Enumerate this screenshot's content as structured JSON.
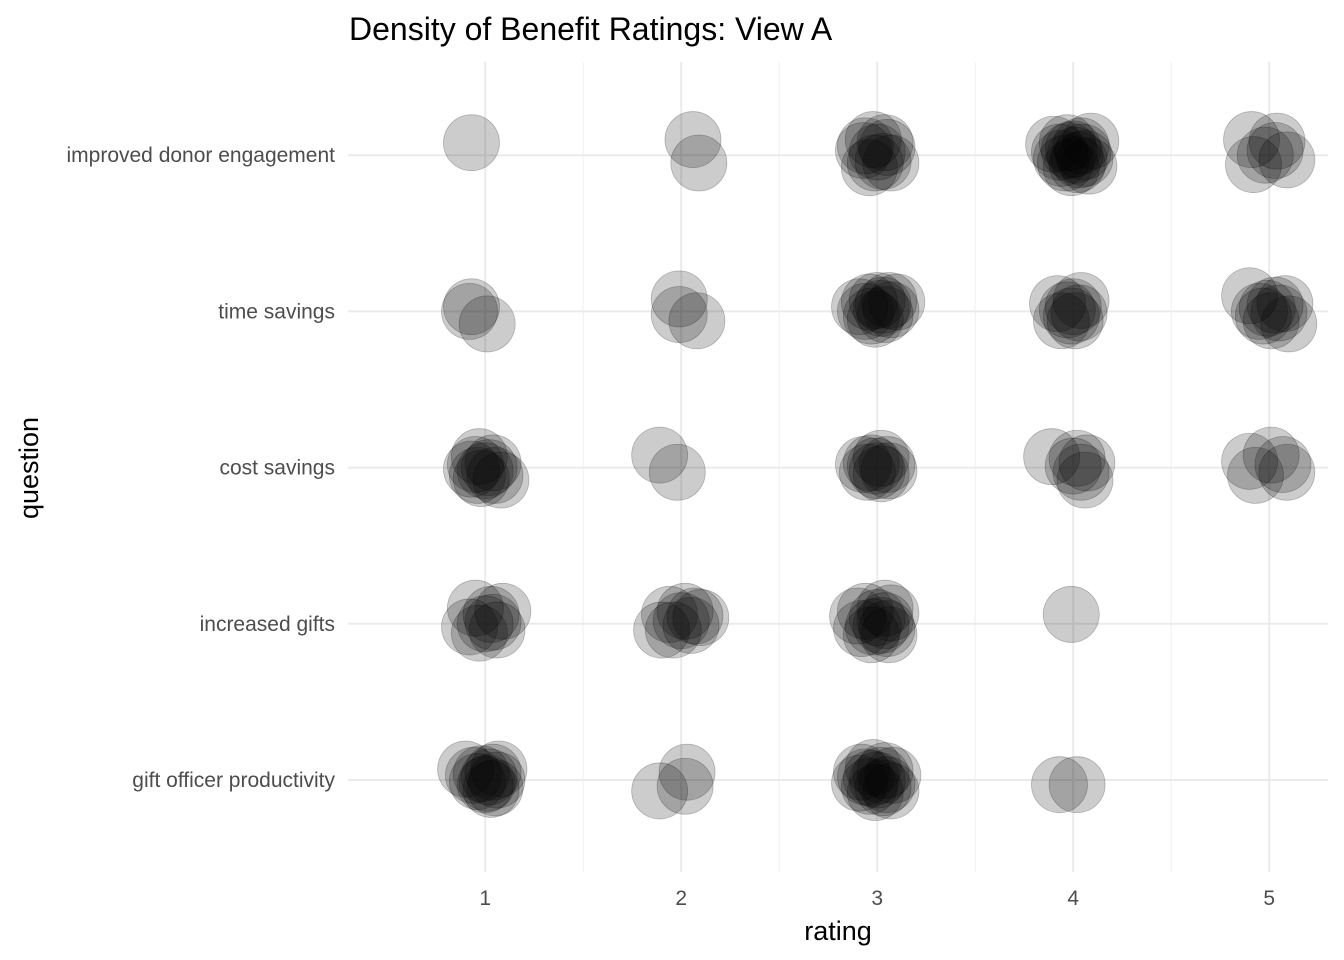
{
  "chart_data": {
    "type": "scatter",
    "title": "Density of Benefit Ratings: View A",
    "xlabel": "rating",
    "ylabel": "question",
    "x_ticks": [
      1,
      2,
      3,
      4,
      5
    ],
    "xlim": [
      0.3,
      5.3
    ],
    "categories": [
      "gift officer productivity",
      "increased gifts",
      "cost savings",
      "time savings",
      "improved donor engagement"
    ],
    "grid": true,
    "legend": "none",
    "point_color": "#000000",
    "points": [
      {
        "question": "improved donor engagement",
        "rating": 1,
        "jitter": [
          [
            -0.07,
            0.08
          ]
        ]
      },
      {
        "question": "improved donor engagement",
        "rating": 2,
        "jitter": [
          [
            0.06,
            0.1
          ],
          [
            0.09,
            -0.05
          ]
        ]
      },
      {
        "question": "improved donor engagement",
        "rating": 3,
        "jitter": [
          [
            -0.06,
            0.06
          ],
          [
            0.05,
            0.05
          ],
          [
            -0.02,
            0.1
          ],
          [
            0.03,
            -0.04
          ],
          [
            -0.04,
            -0.08
          ],
          [
            0.07,
            -0.05
          ],
          [
            0.0,
            0.02
          ],
          [
            -0.07,
            0.03
          ],
          [
            0.04,
            0.08
          ],
          [
            -0.01,
            -0.05
          ]
        ]
      },
      {
        "question": "improved donor engagement",
        "rating": 4,
        "jitter": [
          [
            -0.1,
            0.07
          ],
          [
            -0.03,
            0.08
          ],
          [
            0.09,
            0.09
          ],
          [
            0.04,
            0.06
          ],
          [
            -0.07,
            0.02
          ],
          [
            0.01,
            0.0
          ],
          [
            0.06,
            -0.02
          ],
          [
            -0.04,
            -0.05
          ],
          [
            0.02,
            -0.06
          ],
          [
            0.08,
            -0.07
          ],
          [
            -0.01,
            -0.08
          ],
          [
            0.0,
            0.04
          ],
          [
            -0.06,
            -0.02
          ],
          [
            0.05,
            0.02
          ],
          [
            -0.02,
            0.03
          ],
          [
            0.03,
            -0.03
          ]
        ]
      },
      {
        "question": "improved donor engagement",
        "rating": 5,
        "jitter": [
          [
            -0.09,
            0.1
          ],
          [
            0.04,
            0.09
          ],
          [
            -0.08,
            -0.06
          ],
          [
            0.09,
            -0.03
          ],
          [
            -0.02,
            0.0
          ],
          [
            0.03,
            0.03
          ]
        ]
      },
      {
        "question": "time savings",
        "rating": 1,
        "jitter": [
          [
            -0.08,
            0.0
          ],
          [
            -0.07,
            0.03
          ],
          [
            0.01,
            -0.08
          ]
        ]
      },
      {
        "question": "time savings",
        "rating": 2,
        "jitter": [
          [
            -0.01,
            0.08
          ],
          [
            -0.01,
            -0.02
          ],
          [
            0.08,
            -0.06
          ]
        ]
      },
      {
        "question": "time savings",
        "rating": 3,
        "jitter": [
          [
            -0.09,
            0.03
          ],
          [
            -0.04,
            0.06
          ],
          [
            0.0,
            0.07
          ],
          [
            0.06,
            0.07
          ],
          [
            0.1,
            0.06
          ],
          [
            -0.03,
            -0.03
          ],
          [
            0.04,
            -0.02
          ],
          [
            -0.06,
            0.0
          ],
          [
            0.02,
            0.02
          ],
          [
            0.07,
            0.01
          ],
          [
            -0.01,
            -0.05
          ],
          [
            0.03,
            0.04
          ]
        ]
      },
      {
        "question": "time savings",
        "rating": 4,
        "jitter": [
          [
            -0.08,
            0.05
          ],
          [
            0.04,
            0.07
          ],
          [
            -0.06,
            -0.06
          ],
          [
            0.01,
            -0.06
          ],
          [
            -0.03,
            0.01
          ],
          [
            0.03,
            -0.01
          ],
          [
            0.0,
            0.03
          ],
          [
            -0.01,
            -0.03
          ]
        ]
      },
      {
        "question": "time savings",
        "rating": 5,
        "jitter": [
          [
            -0.1,
            0.1
          ],
          [
            0.08,
            0.05
          ],
          [
            -0.05,
            0.0
          ],
          [
            0.05,
            -0.01
          ],
          [
            0.1,
            -0.08
          ],
          [
            -0.01,
            0.02
          ],
          [
            0.03,
            0.04
          ],
          [
            0.01,
            -0.06
          ],
          [
            -0.03,
            -0.03
          ]
        ]
      },
      {
        "question": "cost savings",
        "rating": 1,
        "jitter": [
          [
            -0.03,
            0.07
          ],
          [
            0.04,
            0.03
          ],
          [
            -0.07,
            -0.01
          ],
          [
            -0.04,
            -0.05
          ],
          [
            0.0,
            -0.02
          ],
          [
            0.08,
            -0.08
          ],
          [
            -0.05,
            0.02
          ],
          [
            0.02,
            0.0
          ],
          [
            0.05,
            -0.05
          ],
          [
            -0.02,
            -0.07
          ]
        ]
      },
      {
        "question": "cost savings",
        "rating": 2,
        "jitter": [
          [
            -0.11,
            0.08
          ],
          [
            -0.02,
            -0.03
          ]
        ]
      },
      {
        "question": "cost savings",
        "rating": 3,
        "jitter": [
          [
            -0.07,
            0.02
          ],
          [
            -0.03,
            0.03
          ],
          [
            0.02,
            0.06
          ],
          [
            0.05,
            0.02
          ],
          [
            -0.05,
            -0.03
          ],
          [
            0.0,
            -0.02
          ],
          [
            0.06,
            -0.02
          ],
          [
            -0.01,
            0.01
          ],
          [
            0.02,
            -0.04
          ]
        ]
      },
      {
        "question": "cost savings",
        "rating": 4,
        "jitter": [
          [
            -0.11,
            0.07
          ],
          [
            0.02,
            0.06
          ],
          [
            0.07,
            0.03
          ],
          [
            0.04,
            -0.03
          ],
          [
            0.06,
            -0.08
          ],
          [
            0.0,
            0.01
          ]
        ]
      },
      {
        "question": "cost savings",
        "rating": 5,
        "jitter": [
          [
            -0.1,
            0.04
          ],
          [
            0.01,
            0.08
          ],
          [
            -0.07,
            -0.05
          ],
          [
            0.09,
            -0.03
          ],
          [
            0.07,
            0.02
          ]
        ]
      },
      {
        "question": "increased gifts",
        "rating": 1,
        "jitter": [
          [
            -0.05,
            0.1
          ],
          [
            0.09,
            0.08
          ],
          [
            -0.08,
            -0.02
          ],
          [
            -0.03,
            -0.06
          ],
          [
            0.04,
            0.01
          ],
          [
            0.06,
            -0.04
          ],
          [
            0.0,
            0.0
          ],
          [
            0.03,
            0.06
          ]
        ]
      },
      {
        "question": "increased gifts",
        "rating": 2,
        "jitter": [
          [
            -0.06,
            0.06
          ],
          [
            0.02,
            0.08
          ],
          [
            0.1,
            0.04
          ],
          [
            -0.1,
            -0.04
          ],
          [
            -0.04,
            -0.04
          ],
          [
            0.05,
            -0.01
          ],
          [
            0.0,
            0.02
          ],
          [
            0.07,
            0.05
          ]
        ]
      },
      {
        "question": "increased gifts",
        "rating": 3,
        "jitter": [
          [
            -0.1,
            0.05
          ],
          [
            -0.06,
            0.08
          ],
          [
            0.04,
            0.1
          ],
          [
            0.07,
            0.07
          ],
          [
            -0.08,
            -0.03
          ],
          [
            -0.02,
            -0.02
          ],
          [
            0.05,
            -0.03
          ],
          [
            0.04,
            0.02
          ],
          [
            0.0,
            0.04
          ],
          [
            -0.03,
            -0.07
          ],
          [
            0.06,
            -0.07
          ],
          [
            0.02,
            -0.01
          ]
        ]
      },
      {
        "question": "increased gifts",
        "rating": 4,
        "jitter": [
          [
            -0.01,
            0.06
          ]
        ]
      },
      {
        "question": "gift officer productivity",
        "rating": 1,
        "jitter": [
          [
            -0.1,
            0.07
          ],
          [
            0.07,
            0.07
          ],
          [
            -0.06,
            0.03
          ],
          [
            -0.02,
            0.04
          ],
          [
            0.02,
            0.02
          ],
          [
            0.04,
            0.05
          ],
          [
            0.0,
            -0.03
          ],
          [
            0.05,
            -0.05
          ],
          [
            -0.04,
            -0.01
          ],
          [
            0.03,
            -0.06
          ],
          [
            0.01,
            -0.02
          ],
          [
            0.06,
            0.0
          ]
        ]
      },
      {
        "question": "gift officer productivity",
        "rating": 2,
        "jitter": [
          [
            0.03,
            0.05
          ],
          [
            -0.11,
            -0.07
          ],
          [
            0.02,
            -0.04
          ]
        ]
      },
      {
        "question": "gift officer productivity",
        "rating": 3,
        "jitter": [
          [
            -0.08,
            0.05
          ],
          [
            -0.02,
            0.08
          ],
          [
            0.04,
            0.06
          ],
          [
            0.08,
            0.03
          ],
          [
            -0.09,
            -0.02
          ],
          [
            -0.04,
            -0.04
          ],
          [
            0.0,
            0.0
          ],
          [
            0.05,
            -0.03
          ],
          [
            0.07,
            -0.07
          ],
          [
            -0.06,
            0.02
          ],
          [
            0.02,
            0.03
          ],
          [
            -0.01,
            -0.08
          ],
          [
            0.03,
            -0.05
          ],
          [
            -0.03,
            0.01
          ]
        ]
      },
      {
        "question": "gift officer productivity",
        "rating": 4,
        "jitter": [
          [
            -0.07,
            -0.03
          ],
          [
            0.02,
            -0.03
          ]
        ]
      }
    ]
  }
}
